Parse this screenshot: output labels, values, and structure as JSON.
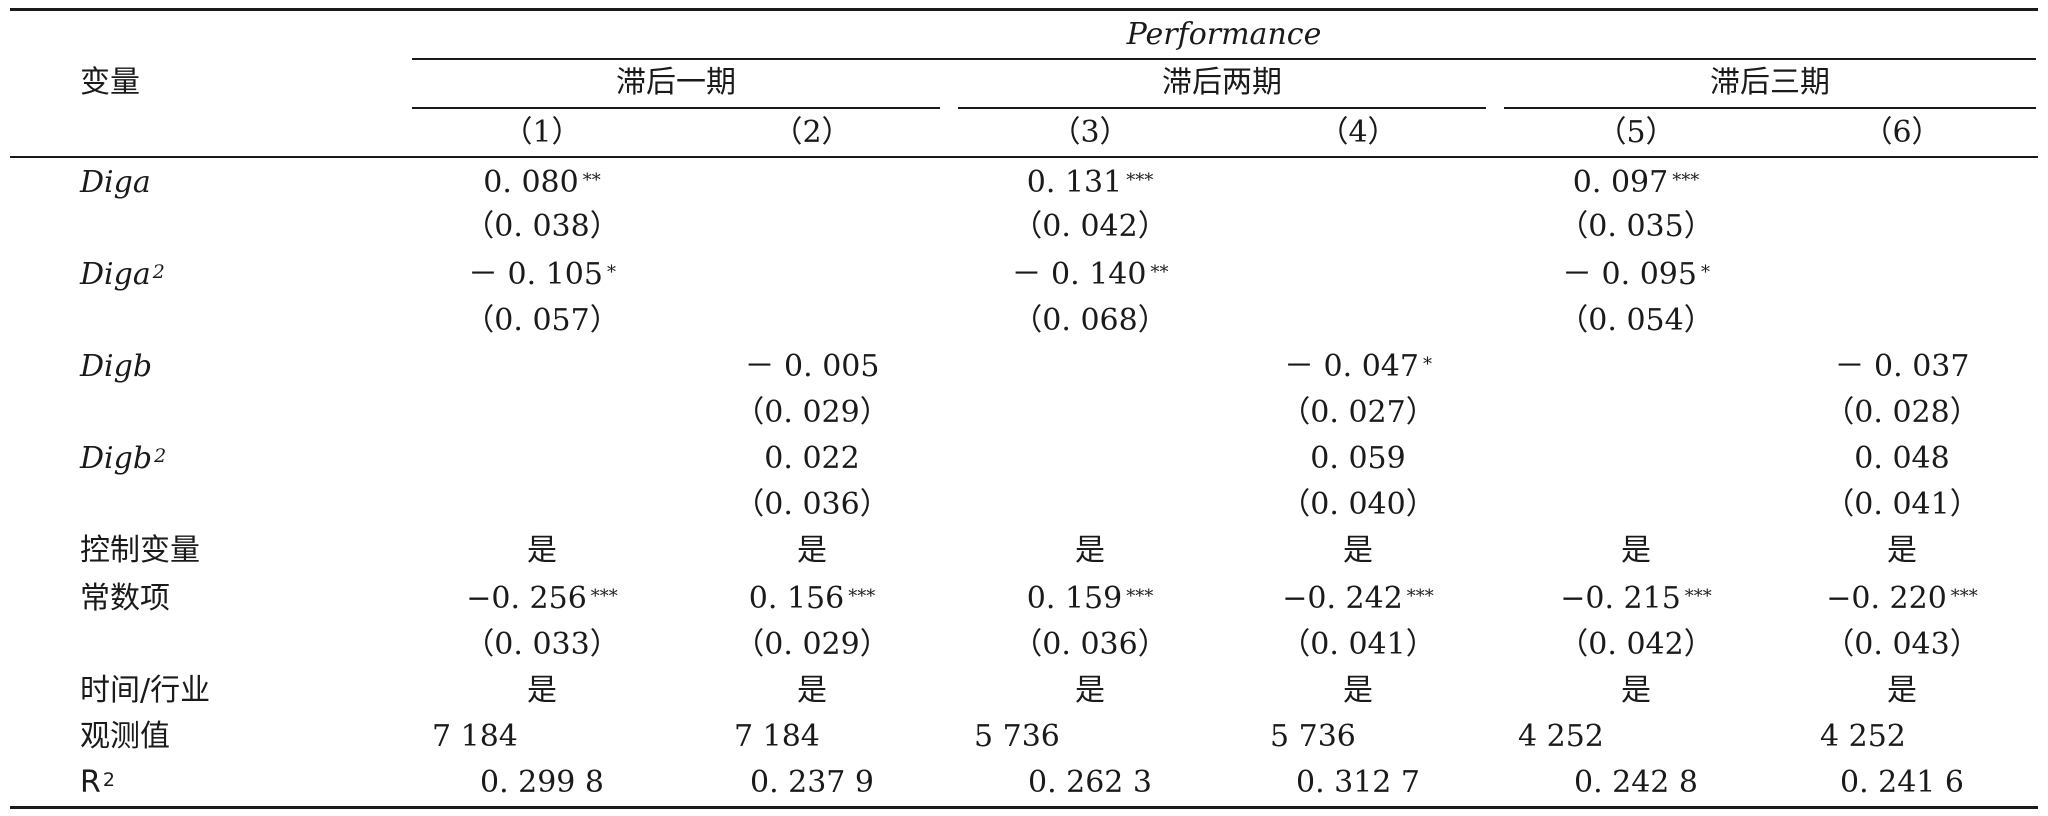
{
  "table": {
    "variable_header": "变量",
    "dependent_var": "Performance",
    "groups": [
      "滞后一期",
      "滞后两期",
      "滞后三期"
    ],
    "columns": [
      "（1）",
      "（2）",
      "（3）",
      "（4）",
      "（5）",
      "（6）"
    ],
    "rows": [
      {
        "label": "Diga",
        "label_sup": "",
        "italic": true,
        "cells": [
          {
            "v": "0. 080",
            "s": "**"
          },
          null,
          {
            "v": "0. 131",
            "s": "***"
          },
          null,
          {
            "v": "0. 097",
            "s": "***"
          },
          null
        ]
      },
      {
        "label": "",
        "label_sup": "",
        "italic": false,
        "cells": [
          {
            "v": "（0. 038）",
            "s": ""
          },
          null,
          {
            "v": "（0. 042）",
            "s": ""
          },
          null,
          {
            "v": "（0. 035）",
            "s": ""
          },
          null
        ]
      },
      {
        "label": "Diga",
        "label_sup": "2",
        "italic": true,
        "cells": [
          {
            "v": "－ 0. 105",
            "s": "*"
          },
          null,
          {
            "v": "－ 0. 140",
            "s": "**"
          },
          null,
          {
            "v": "－ 0. 095",
            "s": "*"
          },
          null
        ]
      },
      {
        "label": "",
        "label_sup": "",
        "italic": false,
        "cells": [
          {
            "v": "（0. 057）",
            "s": ""
          },
          null,
          {
            "v": "（0. 068）",
            "s": ""
          },
          null,
          {
            "v": "（0. 054）",
            "s": ""
          },
          null
        ]
      },
      {
        "label": "Digb",
        "label_sup": "",
        "italic": true,
        "cells": [
          null,
          {
            "v": "－ 0. 005",
            "s": ""
          },
          null,
          {
            "v": "－ 0. 047",
            "s": "*"
          },
          null,
          {
            "v": "－ 0. 037",
            "s": ""
          }
        ]
      },
      {
        "label": "",
        "label_sup": "",
        "italic": false,
        "cells": [
          null,
          {
            "v": "（0. 029）",
            "s": ""
          },
          null,
          {
            "v": "（0. 027）",
            "s": ""
          },
          null,
          {
            "v": "（0. 028）",
            "s": ""
          }
        ]
      },
      {
        "label": "Digb",
        "label_sup": "2",
        "italic": true,
        "cells": [
          null,
          {
            "v": "0. 022",
            "s": ""
          },
          null,
          {
            "v": "0. 059",
            "s": ""
          },
          null,
          {
            "v": "0. 048",
            "s": ""
          }
        ]
      },
      {
        "label": "",
        "label_sup": "",
        "italic": false,
        "cells": [
          null,
          {
            "v": "（0. 036）",
            "s": ""
          },
          null,
          {
            "v": "（0. 040）",
            "s": ""
          },
          null,
          {
            "v": "（0. 041）",
            "s": ""
          }
        ]
      },
      {
        "label": "控制变量",
        "label_sup": "",
        "italic": false,
        "cells": [
          {
            "v": "是",
            "s": ""
          },
          {
            "v": "是",
            "s": ""
          },
          {
            "v": "是",
            "s": ""
          },
          {
            "v": "是",
            "s": ""
          },
          {
            "v": "是",
            "s": ""
          },
          {
            "v": "是",
            "s": ""
          }
        ]
      },
      {
        "label": "常数项",
        "label_sup": "",
        "italic": false,
        "cells": [
          {
            "v": "−0. 256",
            "s": "***"
          },
          {
            "v": "0. 156",
            "s": "***"
          },
          {
            "v": "0. 159",
            "s": "***"
          },
          {
            "v": "−0. 242",
            "s": "***"
          },
          {
            "v": "−0. 215",
            "s": "***"
          },
          {
            "v": "−0. 220",
            "s": "***"
          }
        ]
      },
      {
        "label": "",
        "label_sup": "",
        "italic": false,
        "cells": [
          {
            "v": "（0. 033）",
            "s": ""
          },
          {
            "v": "（0. 029）",
            "s": ""
          },
          {
            "v": "（0. 036）",
            "s": ""
          },
          {
            "v": "（0. 041）",
            "s": ""
          },
          {
            "v": "（0. 042）",
            "s": ""
          },
          {
            "v": "（0. 043）",
            "s": ""
          }
        ]
      },
      {
        "label": "时间/行业",
        "label_sup": "",
        "italic": false,
        "cells": [
          {
            "v": "是",
            "s": ""
          },
          {
            "v": "是",
            "s": ""
          },
          {
            "v": "是",
            "s": ""
          },
          {
            "v": "是",
            "s": ""
          },
          {
            "v": "是",
            "s": ""
          },
          {
            "v": "是",
            "s": ""
          }
        ]
      },
      {
        "label": "观测值",
        "label_sup": "",
        "italic": false,
        "left_aligned": true,
        "cells": [
          {
            "v": "7 184",
            "s": ""
          },
          {
            "v": "7 184",
            "s": ""
          },
          {
            "v": "5 736",
            "s": ""
          },
          {
            "v": "5 736",
            "s": ""
          },
          {
            "v": "4 252",
            "s": ""
          },
          {
            "v": "4 252",
            "s": ""
          }
        ]
      },
      {
        "label": "R",
        "label_sup": "2",
        "italic": false,
        "cells": [
          {
            "v": "0. 299 8",
            "s": ""
          },
          {
            "v": "0. 237 9",
            "s": ""
          },
          {
            "v": "0. 262 3",
            "s": ""
          },
          {
            "v": "0. 312 7",
            "s": ""
          },
          {
            "v": "0. 242 8",
            "s": ""
          },
          {
            "v": "0. 241 6",
            "s": ""
          }
        ]
      }
    ]
  }
}
